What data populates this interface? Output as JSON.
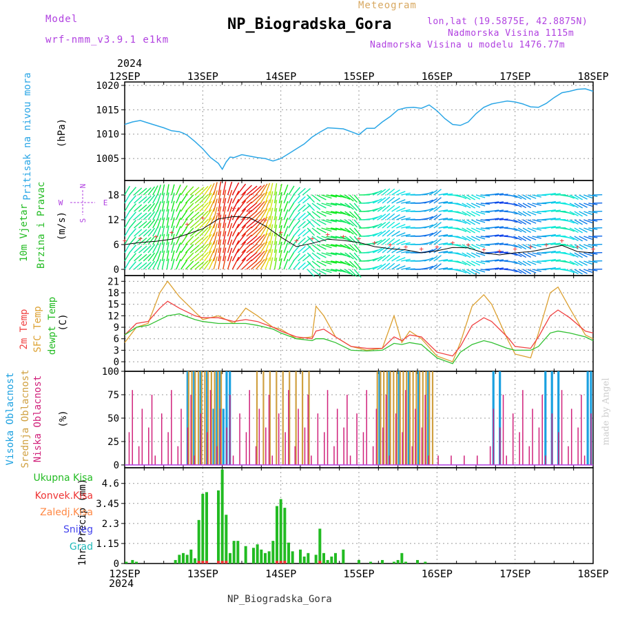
{
  "header": {
    "model_label": "Model",
    "model_name": "wrf-nmm_v3.9.1  e1km",
    "title": "NP_Biogradska_Gora",
    "subtitle": "Meteogram",
    "coords": "lon,lat (19.5875E, 42.8875N)",
    "elevation": "Nadmorska Visina 1115m",
    "model_elevation": "Nadmorska Visina u modelu 1476.77m",
    "year_top": "2024",
    "year_bottom": "2024",
    "footer": "NP_Biogradska_Gora",
    "watermark": "made by Angel"
  },
  "x_axis": {
    "labels": [
      "12SEP",
      "13SEP",
      "14SEP",
      "15SEP",
      "16SEP",
      "17SEP",
      "18SEP"
    ]
  },
  "panels": {
    "pressure": {
      "label": "Pritisak na nivou mora",
      "unit": "(hPa)"
    },
    "wind": {
      "label1": "10m Vjetar",
      "label2": "Brzina i Pravac",
      "unit": "(m/s)",
      "compass": "N",
      "compass_w": "W",
      "compass_e": "E",
      "compass_s": "S"
    },
    "temp": {
      "label1": "2m Temp",
      "label2": "SFC Temp",
      "label3": "dewpt Temp",
      "unit": "(C)"
    },
    "cloud": {
      "label1": "Visoka Oblacnost",
      "label2": "Srednja Oblacnost",
      "label3": "Niska Oblacnost",
      "unit": "(%)"
    },
    "precip": {
      "unit": "1hr Precip (mm)",
      "legend": [
        "Ukupna Kisa",
        "Konvek.Kisa",
        "Zaledj.Kisa",
        "Snijeg",
        "Grad"
      ]
    }
  },
  "colors": {
    "pressure": "#2aa6e6",
    "temp2m": "#f04040",
    "sfc": "#dca030",
    "dew": "#30c030",
    "high_cloud": "#1aa0e0",
    "mid_cloud": "#d0a040",
    "low_cloud": "#d0207a",
    "rain": "#22bb22",
    "conv": "#ee3333",
    "frz": "#ff8844",
    "snow": "#4444ee",
    "hail": "#22bbbb"
  },
  "chart_data": [
    {
      "type": "line",
      "title": "Pritisak na nivou mora",
      "ylabel": "(hPa)",
      "yticks": [
        1005,
        1010,
        1015,
        1020
      ],
      "ylim": [
        1000.5,
        1020.7
      ],
      "x_days": [
        0,
        0.1,
        0.2,
        0.3,
        0.4,
        0.5,
        0.6,
        0.7,
        0.75,
        0.8,
        0.9,
        1.0,
        1.1,
        1.2,
        1.25,
        1.3,
        1.35,
        1.4,
        1.5,
        1.6,
        1.7,
        1.8,
        1.9,
        2.0,
        2.1,
        2.2,
        2.3,
        2.4,
        2.5,
        2.6,
        2.7,
        2.8,
        2.9,
        3.0,
        3.1,
        3.2,
        3.3,
        3.4,
        3.5,
        3.6,
        3.7,
        3.8,
        3.9,
        4.0,
        4.1,
        4.2,
        4.3,
        4.4,
        4.5,
        4.6,
        4.7,
        4.8,
        4.9,
        5.0,
        5.1,
        5.2,
        5.3,
        5.4,
        5.5,
        5.6,
        5.7,
        5.8,
        5.9,
        6.0
      ],
      "values": [
        1012,
        1012.5,
        1012.8,
        1012.3,
        1011.8,
        1011.3,
        1010.7,
        1010.5,
        1010.2,
        1009.8,
        1008.5,
        1007,
        1005.2,
        1004,
        1002.8,
        1004.3,
        1005.3,
        1005.2,
        1005.8,
        1005.5,
        1005.2,
        1005.0,
        1004.5,
        1005.0,
        1006,
        1007.0,
        1008.0,
        1009.4,
        1010.4,
        1011.3,
        1011.2,
        1011.1,
        1010.5,
        1009.9,
        1011.2,
        1011.2,
        1012.5,
        1013.6,
        1015.0,
        1015.4,
        1015.5,
        1015.3,
        1016,
        1014.8,
        1013.2,
        1012.0,
        1011.8,
        1012.5,
        1014.2,
        1015.5,
        1016.2,
        1016.5,
        1016.8,
        1016.6,
        1016.2,
        1015.6,
        1015.5,
        1016.3,
        1017.5,
        1018.5,
        1018.8,
        1019.2,
        1019.3,
        1018.8
      ]
    },
    {
      "type": "line",
      "title": "10m Vjetar Brzina i Pravac",
      "ylabel": "(m/s)",
      "yticks": [
        0,
        6,
        12,
        18
      ],
      "ylim": [
        -1.5,
        21.5
      ],
      "x_days": [
        0,
        0.2,
        0.4,
        0.6,
        0.8,
        1.0,
        1.2,
        1.4,
        1.6,
        1.8,
        2.0,
        2.2,
        2.4,
        2.6,
        2.8,
        3.0,
        3.2,
        3.4,
        3.6,
        3.8,
        4.0,
        4.2,
        4.4,
        4.6,
        4.8,
        5.0,
        5.2,
        5.4,
        5.6,
        5.8,
        6.0
      ],
      "series": [
        {
          "name": "mean",
          "values": [
            6,
            6.5,
            6.8,
            7.3,
            8.5,
            9.8,
            12.2,
            12.8,
            12.5,
            10.5,
            7.8,
            5.5,
            6.3,
            7.3,
            7.0,
            6.5,
            5.5,
            5.0,
            4.7,
            4.0,
            4.5,
            5.3,
            5.2,
            4.0,
            3.5,
            4.0,
            4.3,
            5.0,
            5.8,
            4.3,
            4.0
          ]
        },
        {
          "name": "gust",
          "values": [
            7,
            7.5,
            8,
            9,
            11,
            12.5,
            13.5,
            14.8,
            14,
            12,
            9,
            7,
            7.5,
            8.5,
            8,
            7.5,
            6.5,
            6,
            5.5,
            5,
            5.5,
            6.5,
            6,
            4.8,
            4.5,
            5,
            5.5,
            6,
            7,
            5.5,
            5
          ]
        }
      ]
    },
    {
      "type": "line",
      "title": "2m Temp / SFC Temp / dewpt Temp",
      "ylabel": "(C)",
      "yticks": [
        0,
        3,
        6,
        9,
        12,
        15,
        18,
        21
      ],
      "ylim": [
        -2.5,
        22.5
      ],
      "x_days": [
        0,
        0.15,
        0.3,
        0.45,
        0.55,
        0.7,
        0.9,
        1.0,
        1.2,
        1.4,
        1.55,
        1.7,
        1.9,
        2.0,
        2.2,
        2.4,
        2.45,
        2.55,
        2.7,
        2.9,
        3.1,
        3.3,
        3.45,
        3.55,
        3.65,
        3.8,
        4.0,
        4.2,
        4.3,
        4.45,
        4.6,
        4.7,
        4.9,
        5.0,
        5.2,
        5.3,
        5.45,
        5.55,
        5.7,
        5.9,
        6.0
      ],
      "series": [
        {
          "name": "SFC",
          "values": [
            5,
            9,
            10,
            18,
            21,
            17,
            13,
            11,
            12,
            10,
            14,
            12,
            9,
            8.5,
            6,
            6.5,
            14.5,
            12,
            6.5,
            4,
            3,
            3.5,
            12,
            5,
            8,
            6,
            1.5,
            0,
            5,
            14.5,
            17.5,
            15,
            6,
            2,
            1,
            7.5,
            18,
            19.5,
            14,
            7,
            6
          ]
        },
        {
          "name": "2m",
          "values": [
            7,
            10,
            10.5,
            14,
            15.8,
            14,
            12,
            11.5,
            11.5,
            10.5,
            11,
            10.5,
            9,
            8,
            6.5,
            6,
            8,
            8.5,
            6.5,
            4,
            3.5,
            3.5,
            6.5,
            5.5,
            7,
            6.5,
            2.5,
            1.5,
            4,
            9.5,
            11.5,
            10.5,
            6.5,
            4,
            3.5,
            6.5,
            12,
            13.5,
            11.5,
            8,
            7.5
          ]
        },
        {
          "name": "dewpt",
          "values": [
            7,
            9,
            9.5,
            11,
            12,
            12.5,
            11,
            10.5,
            10,
            10,
            10,
            9.5,
            8.5,
            7.5,
            6,
            5.5,
            6,
            6,
            5,
            3,
            2.8,
            3,
            4.8,
            4.5,
            5,
            4.5,
            1,
            -0.5,
            2.5,
            4.5,
            5.5,
            5,
            3.5,
            3,
            3,
            4,
            7.5,
            8,
            7.5,
            6.5,
            5.5
          ]
        }
      ]
    },
    {
      "type": "bar",
      "title": "Visoka / Srednja / Niska Oblacnost",
      "ylabel": "(%)",
      "yticks": [
        0,
        25,
        50,
        75,
        100
      ],
      "ylim": [
        -3,
        100
      ],
      "note": "hourly cloud cover bars; high=blue, mid=orange, low=magenta"
    },
    {
      "type": "bar",
      "title": "1hr Precip",
      "ylabel": "1hr Precip (mm)",
      "yticks": [
        0,
        1.15,
        2.3,
        3.45,
        4.6
      ],
      "ylim": [
        0,
        5.5
      ],
      "x_days": [
        0.02,
        0.1,
        0.15,
        0.65,
        0.7,
        0.75,
        0.8,
        0.85,
        0.9,
        0.95,
        1.0,
        1.05,
        1.2,
        1.25,
        1.3,
        1.35,
        1.4,
        1.45,
        1.55,
        1.65,
        1.7,
        1.75,
        1.8,
        1.85,
        1.9,
        1.95,
        2.0,
        2.05,
        2.1,
        2.15,
        2.25,
        2.3,
        2.35,
        2.45,
        2.5,
        2.55,
        2.6,
        2.65,
        2.7,
        2.8,
        3.0,
        3.15,
        3.3,
        3.45,
        3.5,
        3.55,
        3.6,
        3.75,
        3.85
      ],
      "values": [
        0.1,
        0.2,
        0.1,
        0.2,
        0.5,
        0.6,
        0.5,
        0.8,
        0.3,
        2.5,
        4.0,
        4.1,
        4.2,
        5.4,
        2.8,
        0.6,
        1.3,
        1.3,
        1.0,
        0.9,
        1.1,
        0.8,
        0.6,
        0.7,
        1.3,
        3.3,
        3.7,
        3.2,
        1.2,
        0.7,
        0.8,
        0.4,
        0.6,
        0.5,
        2.0,
        0.6,
        0.2,
        0.4,
        0.6,
        0.8,
        0.2,
        0.1,
        0.2,
        0.1,
        0.2,
        0.6,
        0.1,
        0.2,
        0.1
      ]
    }
  ]
}
